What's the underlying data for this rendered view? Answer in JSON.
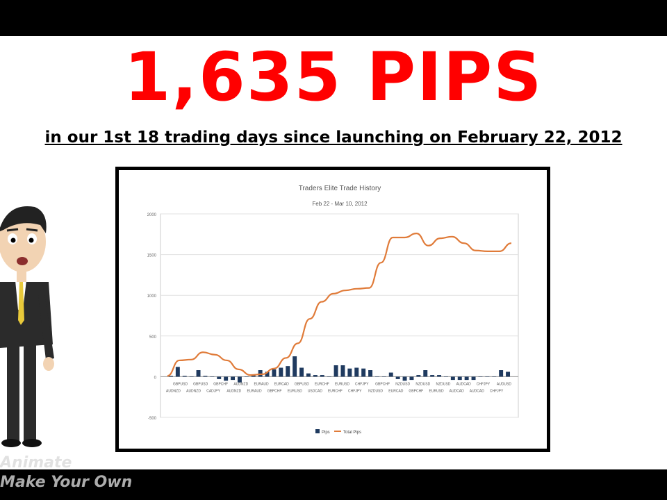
{
  "headline": "1,635 PIPS",
  "subheadline": "in our 1st 18 trading days since launching on February 22, 2012",
  "watermark": {
    "line1": "Animate",
    "line2": "Make Your Own"
  },
  "colors": {
    "headline": "#ff0000",
    "bars": "#1f3a5f",
    "line": "#e07b39"
  },
  "chart_data": {
    "type": "bar+line",
    "title": "Traders Elite Trade History",
    "subtitle": "Feb 22 - Mar 10, 2012",
    "ylim": [
      -500,
      2000
    ],
    "yticks": [
      "2000",
      "1500",
      "1000",
      "500",
      "0",
      "-500"
    ],
    "grid": true,
    "legend_position": "bottom",
    "x_labels_row1": [
      "GBPUSD",
      "GBPUSD",
      "GBPCHF",
      "AUDNZD",
      "EURAUD",
      "EURCAD",
      "GBPUSD",
      "EURCHF",
      "EURUSD",
      "CHFJPY",
      "GBPCHF",
      "NZDUSD",
      "NZDUSD",
      "NZDUSD",
      "AUDCAD",
      "CHFJPY",
      "AUDUSD"
    ],
    "x_labels_row2": [
      "AUDNZD",
      "AUDNZD",
      "CADJPY",
      "AUDNZD",
      "EURAUD",
      "GBPCHF",
      "EURUSD",
      "USDCAD",
      "EURCHF",
      "CHFJPY",
      "NZDUSD",
      "EURCAD",
      "GBPCHF",
      "EURUSD",
      "AUDCAD",
      "AUDCAD",
      "CHFJPY"
    ],
    "series": [
      {
        "name": "Pips",
        "kind": "bar",
        "values": [
          10,
          120,
          10,
          0,
          80,
          10,
          0,
          -30,
          -50,
          -40,
          -70,
          0,
          20,
          80,
          60,
          90,
          110,
          130,
          250,
          110,
          40,
          20,
          20,
          0,
          140,
          140,
          100,
          110,
          100,
          80,
          0,
          0,
          50,
          -30,
          -50,
          -40,
          20,
          80,
          20,
          20,
          0,
          -40,
          -40,
          -40,
          -40,
          0,
          0,
          0,
          80,
          60
        ]
      },
      {
        "name": "Total Pips",
        "kind": "line",
        "values": [
          10,
          200,
          210,
          300,
          270,
          200,
          90,
          20,
          30,
          100,
          230,
          410,
          710,
          920,
          1020,
          1060,
          1080,
          1090,
          1400,
          1710,
          1710,
          1760,
          1610,
          1700,
          1720,
          1640,
          1550,
          1540,
          1540,
          1640
        ]
      }
    ]
  }
}
